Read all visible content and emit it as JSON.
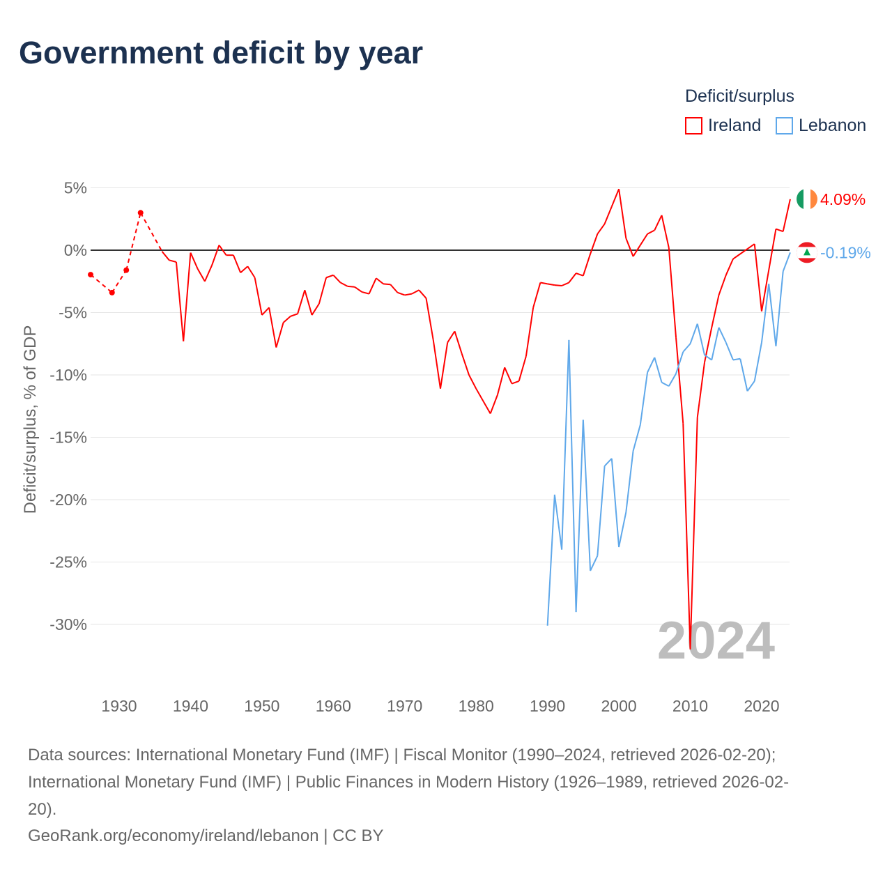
{
  "title": "Government deficit by year",
  "legend": {
    "title": "Deficit/surplus",
    "items": [
      {
        "name": "Ireland",
        "color": "#ff0000"
      },
      {
        "name": "Lebanon",
        "color": "#5fa8ea"
      }
    ]
  },
  "year_watermark": "2024",
  "footer": {
    "line1": "Data sources: International Monetary Fund (IMF) | Fiscal Monitor (1990–2024, retrieved 2026-02-20);",
    "line2": "International Monetary Fund (IMF) | Public Finances in Modern History (1926–1989, retrieved 2026-02-",
    "line3": "20).",
    "line4": "GeoRank.org/economy/ireland/lebanon | CC BY"
  },
  "chart_data": {
    "type": "line",
    "title": "Government deficit by year",
    "ylabel": "Deficit/surplus, % of GDP",
    "xlim": [
      1926,
      2024
    ],
    "ylim": [
      -33,
      6
    ],
    "xticks": [
      1930,
      1940,
      1950,
      1960,
      1970,
      1980,
      1990,
      2000,
      2010,
      2020
    ],
    "yticks": [
      {
        "v": 5,
        "label": "5%"
      },
      {
        "v": 0,
        "label": "0%"
      },
      {
        "v": -5,
        "label": "-5%"
      },
      {
        "v": -10,
        "label": "-10%"
      },
      {
        "v": -15,
        "label": "-15%"
      },
      {
        "v": -20,
        "label": "-20%"
      },
      {
        "v": -25,
        "label": "-25%"
      },
      {
        "v": -30,
        "label": "-30%"
      }
    ],
    "series": [
      {
        "name": "Ireland",
        "color": "#ff0000",
        "end_label": "4.09%",
        "flag": "ireland-flag",
        "points": [
          [
            1926,
            -1.96
          ],
          [
            1929,
            -3.4
          ],
          [
            1931,
            -1.6
          ],
          [
            1933,
            3.0
          ],
          [
            1936,
            -0.1
          ],
          [
            1937,
            -0.8
          ],
          [
            1938,
            -0.95
          ],
          [
            1939,
            -7.3
          ],
          [
            1940,
            -0.2
          ],
          [
            1941,
            -1.5
          ],
          [
            1942,
            -2.5
          ],
          [
            1943,
            -1.2
          ],
          [
            1944,
            0.4
          ],
          [
            1945,
            -0.4
          ],
          [
            1946,
            -0.4
          ],
          [
            1947,
            -1.8
          ],
          [
            1948,
            -1.3
          ],
          [
            1949,
            -2.2
          ],
          [
            1950,
            -5.2
          ],
          [
            1951,
            -4.6
          ],
          [
            1952,
            -7.8
          ],
          [
            1953,
            -5.8
          ],
          [
            1954,
            -5.3
          ],
          [
            1955,
            -5.1
          ],
          [
            1956,
            -3.2
          ],
          [
            1957,
            -5.2
          ],
          [
            1958,
            -4.3
          ],
          [
            1959,
            -2.2
          ],
          [
            1960,
            -2.0
          ],
          [
            1961,
            -2.6
          ],
          [
            1962,
            -2.9
          ],
          [
            1963,
            -2.95
          ],
          [
            1964,
            -3.35
          ],
          [
            1965,
            -3.5
          ],
          [
            1966,
            -2.25
          ],
          [
            1967,
            -2.7
          ],
          [
            1968,
            -2.75
          ],
          [
            1969,
            -3.4
          ],
          [
            1970,
            -3.6
          ],
          [
            1971,
            -3.5
          ],
          [
            1972,
            -3.2
          ],
          [
            1973,
            -3.85
          ],
          [
            1974,
            -7.2
          ],
          [
            1975,
            -11.1
          ],
          [
            1976,
            -7.4
          ],
          [
            1977,
            -6.5
          ],
          [
            1978,
            -8.3
          ],
          [
            1979,
            -10.0
          ],
          [
            1980,
            -11.1
          ],
          [
            1981,
            -12.1
          ],
          [
            1982,
            -13.1
          ],
          [
            1983,
            -11.6
          ],
          [
            1984,
            -9.4
          ],
          [
            1985,
            -10.7
          ],
          [
            1986,
            -10.5
          ],
          [
            1987,
            -8.5
          ],
          [
            1988,
            -4.6
          ],
          [
            1989,
            -2.6
          ],
          [
            1990,
            -2.7
          ],
          [
            1991,
            -2.8
          ],
          [
            1992,
            -2.85
          ],
          [
            1993,
            -2.6
          ],
          [
            1994,
            -1.85
          ],
          [
            1995,
            -2.05
          ],
          [
            1996,
            -0.3
          ],
          [
            1997,
            1.3
          ],
          [
            1998,
            2.1
          ],
          [
            1999,
            3.5
          ],
          [
            2000,
            4.9
          ],
          [
            2001,
            0.95
          ],
          [
            2002,
            -0.5
          ],
          [
            2003,
            0.4
          ],
          [
            2004,
            1.3
          ],
          [
            2005,
            1.6
          ],
          [
            2006,
            2.8
          ],
          [
            2007,
            0.2
          ],
          [
            2008,
            -7.0
          ],
          [
            2009,
            -13.9
          ],
          [
            2010,
            -32.0
          ],
          [
            2011,
            -13.4
          ],
          [
            2012,
            -9.0
          ],
          [
            2013,
            -6.2
          ],
          [
            2014,
            -3.6
          ],
          [
            2015,
            -2.0
          ],
          [
            2016,
            -0.7
          ],
          [
            2017,
            -0.3
          ],
          [
            2018,
            0.1
          ],
          [
            2019,
            0.5
          ],
          [
            2020,
            -4.9
          ],
          [
            2021,
            -1.6
          ],
          [
            2022,
            1.7
          ],
          [
            2023,
            1.5
          ],
          [
            2024,
            4.09
          ]
        ]
      },
      {
        "name": "Lebanon",
        "color": "#5fa8ea",
        "end_label": "-0.19%",
        "flag": "lebanon-flag",
        "points": [
          [
            1990,
            -30.1
          ],
          [
            1991,
            -19.6
          ],
          [
            1992,
            -24.0
          ],
          [
            1993,
            -7.2
          ],
          [
            1994,
            -29.0
          ],
          [
            1995,
            -13.6
          ],
          [
            1996,
            -25.7
          ],
          [
            1997,
            -24.5
          ],
          [
            1998,
            -17.3
          ],
          [
            1999,
            -16.7
          ],
          [
            2000,
            -23.8
          ],
          [
            2001,
            -21.0
          ],
          [
            2002,
            -16.1
          ],
          [
            2003,
            -14.0
          ],
          [
            2004,
            -9.8
          ],
          [
            2005,
            -8.6
          ],
          [
            2006,
            -10.6
          ],
          [
            2007,
            -10.9
          ],
          [
            2008,
            -9.9
          ],
          [
            2009,
            -8.15
          ],
          [
            2010,
            -7.5
          ],
          [
            2011,
            -5.9
          ],
          [
            2012,
            -8.4
          ],
          [
            2013,
            -8.8
          ],
          [
            2014,
            -6.2
          ],
          [
            2015,
            -7.4
          ],
          [
            2016,
            -8.8
          ],
          [
            2017,
            -8.7
          ],
          [
            2018,
            -11.3
          ],
          [
            2019,
            -10.5
          ],
          [
            2020,
            -7.4
          ],
          [
            2021,
            -2.7
          ],
          [
            2022,
            -7.7
          ],
          [
            2023,
            -1.7
          ],
          [
            2024,
            -0.19
          ]
        ]
      }
    ]
  }
}
